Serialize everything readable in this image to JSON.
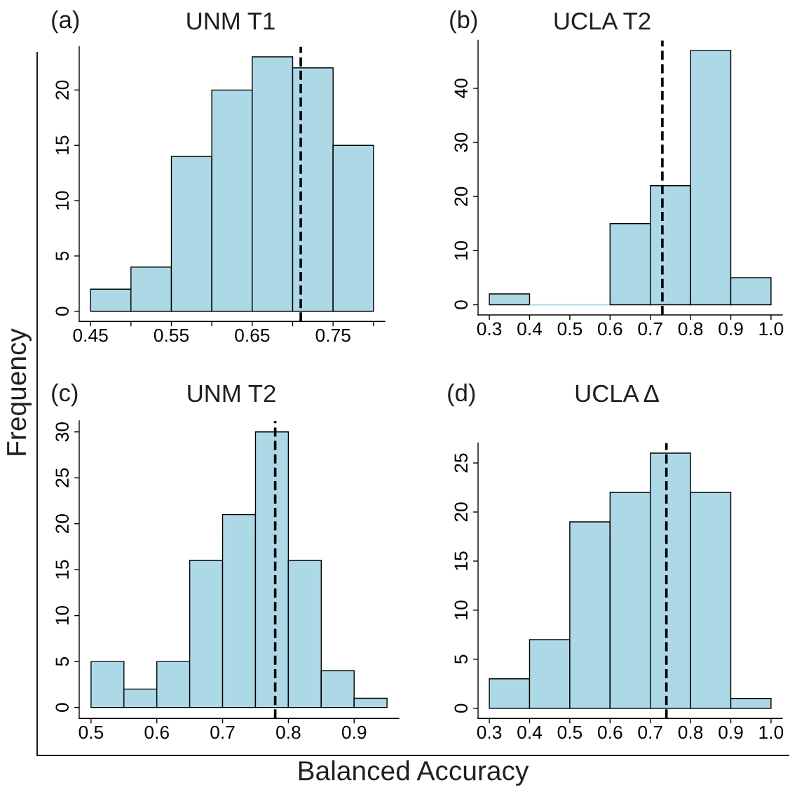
{
  "chart_data": [
    {
      "type": "histogram",
      "title": "UNM T1",
      "annotations": [
        "(a)"
      ],
      "bins": [
        0.45,
        0.5,
        0.55,
        0.6,
        0.65,
        0.7,
        0.75,
        0.8
      ],
      "values": [
        2,
        4,
        14,
        20,
        23,
        22,
        15
      ],
      "color": "#add8e6",
      "xlim": [
        0.436,
        0.814
      ],
      "ylim": [
        -0.92,
        23.92
      ],
      "xticks": [
        0.45,
        {
          "value": 0.5,
          "label": null
        },
        0.55,
        {
          "value": 0.6,
          "label": null
        },
        0.65,
        {
          "value": 0.7,
          "label": null
        },
        0.75,
        {
          "value": 0.8,
          "label": null
        }
      ],
      "yticks": [
        0,
        5,
        10,
        15,
        20
      ],
      "ref_lines": [
        {
          "axis": "x",
          "value": 0.71,
          "color": "#000000",
          "line_style": "dashed"
        }
      ]
    },
    {
      "type": "histogram",
      "title": "UCLA T2",
      "annotations": [
        "(b)"
      ],
      "bins": [
        0.3,
        0.4,
        0.5,
        0.6,
        0.7,
        0.8,
        0.9,
        1.0
      ],
      "values": [
        2,
        0,
        0,
        15,
        22,
        47,
        5
      ],
      "color": "#add8e6",
      "xlim": [
        0.272,
        1.028
      ],
      "ylim": [
        -1.88,
        48.88
      ],
      "xticks": [
        0.3,
        0.4,
        0.5,
        0.6,
        0.7,
        0.8,
        0.9,
        {
          "value": 1.0,
          "label": "1.0"
        }
      ],
      "yticks": [
        0,
        10,
        20,
        30,
        40
      ],
      "ref_lines": [
        {
          "axis": "x",
          "value": 0.73,
          "color": "#000000",
          "line_style": "dashed"
        }
      ]
    },
    {
      "type": "histogram",
      "title": "UNM T2",
      "annotations": [
        "(c)"
      ],
      "xlabel": "Balanced Accuracy",
      "ylabel": "Frequency",
      "bins": [
        0.5,
        0.55,
        0.6,
        0.65,
        0.7,
        0.75,
        0.8,
        0.85,
        0.9,
        0.95
      ],
      "values": [
        5,
        2,
        5,
        16,
        21,
        30,
        16,
        4,
        1
      ],
      "color": "#add8e6",
      "xlim": [
        0.482,
        0.968
      ],
      "ylim": [
        -1.2,
        31.2
      ],
      "xticks": [
        0.5,
        0.6,
        0.7,
        0.8,
        0.9
      ],
      "yticks": [
        0,
        5,
        10,
        15,
        20,
        25,
        30
      ],
      "ref_lines": [
        {
          "axis": "x",
          "value": 0.78,
          "color": "#000000",
          "line_style": "dashed"
        }
      ]
    },
    {
      "type": "histogram",
      "title": "UCLA Δ",
      "annotations": [
        "(d)"
      ],
      "bins": [
        0.3,
        0.4,
        0.5,
        0.6,
        0.7,
        0.8,
        0.9,
        1.0
      ],
      "values": [
        3,
        7,
        19,
        22,
        26,
        22,
        1
      ],
      "color": "#add8e6",
      "xlim": [
        0.272,
        1.028
      ],
      "ylim": [
        -1.04,
        27.04
      ],
      "xticks": [
        0.3,
        0.4,
        0.5,
        0.6,
        0.7,
        0.8,
        0.9,
        {
          "value": 1.0,
          "label": "1.0"
        }
      ],
      "yticks": [
        0,
        5,
        10,
        15,
        20,
        25
      ],
      "ref_lines": [
        {
          "axis": "x",
          "value": 0.74,
          "color": "#000000",
          "line_style": "dashed"
        }
      ]
    }
  ]
}
